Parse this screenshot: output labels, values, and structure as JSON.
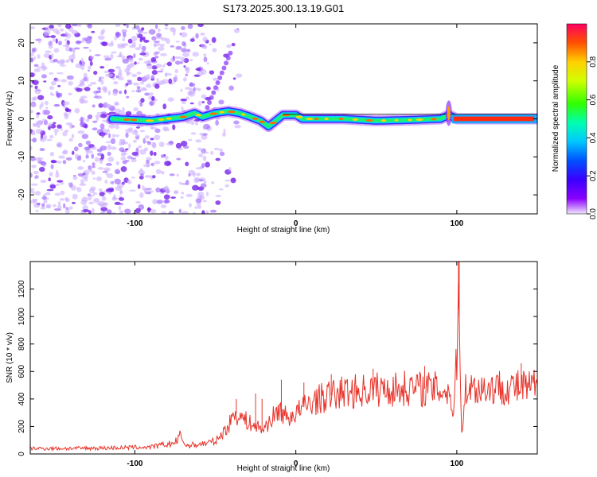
{
  "title": "S173.2025.300.13.19.G01",
  "chart_data": [
    {
      "type": "heatmap",
      "name": "spectrogram",
      "xlabel": "Height of straight line (km)",
      "ylabel": "Frequency (Hz)",
      "xlim": [
        -165,
        150
      ],
      "ylim": [
        -25,
        25
      ],
      "xticks": [
        -100,
        0,
        100
      ],
      "yticks": [
        -20,
        -10,
        0,
        10,
        20
      ],
      "colorbar": {
        "label": "Normalized spectral amplitude",
        "range": [
          0,
          1
        ],
        "ticks": [
          "0.0",
          "0.2",
          "0.4",
          "0.6",
          "0.8"
        ]
      },
      "ridge": [
        {
          "x": -114,
          "f": 0.0
        },
        {
          "x": -100,
          "f": -0.3
        },
        {
          "x": -90,
          "f": -0.5
        },
        {
          "x": -80,
          "f": 0.0
        },
        {
          "x": -70,
          "f": 0.5
        },
        {
          "x": -63,
          "f": 1.5
        },
        {
          "x": -58,
          "f": 0.5
        },
        {
          "x": -50,
          "f": 1.5
        },
        {
          "x": -42,
          "f": 2.0
        },
        {
          "x": -35,
          "f": 1.5
        },
        {
          "x": -28,
          "f": 0.5
        },
        {
          "x": -22,
          "f": -0.5
        },
        {
          "x": -17,
          "f": -2.0
        },
        {
          "x": -14,
          "f": -1.0
        },
        {
          "x": -8,
          "f": 1.0
        },
        {
          "x": 0,
          "f": 1.0
        },
        {
          "x": 4,
          "f": 0.0
        },
        {
          "x": 30,
          "f": 0.0
        },
        {
          "x": 50,
          "f": -0.5
        },
        {
          "x": 70,
          "f": -0.3
        },
        {
          "x": 90,
          "f": 0.0
        },
        {
          "x": 95,
          "f": 1.0
        },
        {
          "x": 100,
          "f": 0.0
        },
        {
          "x": 150,
          "f": 0.0
        }
      ]
    },
    {
      "type": "line",
      "name": "snr",
      "xlabel": "Height of straight line (km)",
      "ylabel": "SNR (10 * v/v)",
      "xlim": [
        -165,
        150
      ],
      "ylim": [
        0,
        1400
      ],
      "xticks": [
        -100,
        0,
        100
      ],
      "yticks": [
        0,
        200,
        400,
        600,
        800,
        1000,
        1200
      ],
      "color": "#e8332a",
      "series": [
        {
          "name": "SNR",
          "x": [
            -165,
            -140,
            -110,
            -90,
            -75,
            -72,
            -68,
            -60,
            -50,
            -42,
            -38,
            -32,
            -25,
            -20,
            -15,
            -10,
            -5,
            0,
            10,
            20,
            30,
            40,
            50,
            60,
            70,
            80,
            90,
            95,
            98,
            100,
            101,
            102,
            103,
            105,
            110,
            120,
            130,
            140,
            150
          ],
          "y": [
            40,
            40,
            45,
            50,
            80,
            130,
            60,
            70,
            90,
            200,
            300,
            250,
            200,
            180,
            260,
            320,
            260,
            300,
            380,
            420,
            450,
            460,
            470,
            470,
            480,
            475,
            470,
            460,
            300,
            700,
            1400,
            600,
            150,
            470,
            480,
            480,
            490,
            480,
            490
          ]
        }
      ],
      "spikes": [
        {
          "x": -37,
          "y": 400
        },
        {
          "x": -25,
          "y": 440
        },
        {
          "x": -21,
          "y": 400
        },
        {
          "x": -9,
          "y": 540
        },
        {
          "x": 5,
          "y": 520
        },
        {
          "x": 22,
          "y": 580
        },
        {
          "x": 48,
          "y": 620
        },
        {
          "x": 80,
          "y": 640
        },
        {
          "x": 101,
          "y": 1060
        },
        {
          "x": 101.5,
          "y": 1400
        },
        {
          "x": 140,
          "y": 660
        }
      ]
    }
  ]
}
